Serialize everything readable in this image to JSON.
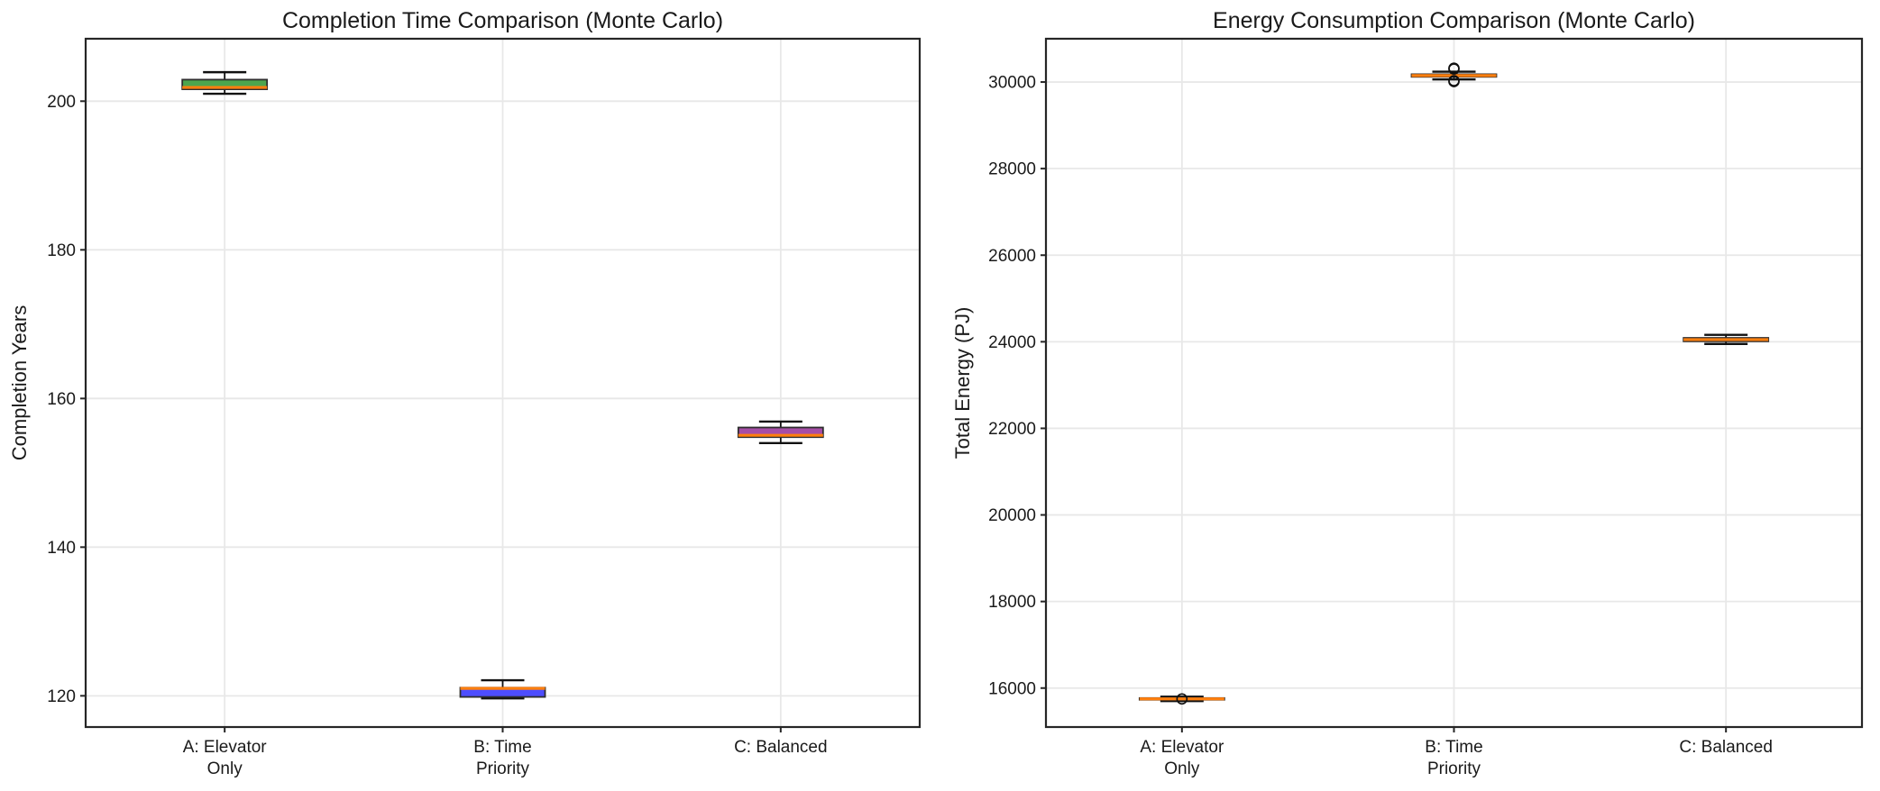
{
  "chart_data": [
    {
      "type": "box",
      "title": "Completion Time Comparison (Monte Carlo)",
      "ylabel": "Completion Years",
      "xlabel": "",
      "categories": [
        "A: Elevator\nOnly",
        "B: Time\nPriority",
        "C: Balanced"
      ],
      "ylim": [
        115.8,
        208.4
      ],
      "yticks": [
        120,
        140,
        160,
        180,
        200
      ],
      "grid": true,
      "legend": "none",
      "median_color": "#ff7f0e",
      "boxes": [
        {
          "label": "A: Elevator Only",
          "whislo": 201.0,
          "q1": 201.6,
          "med": 201.85,
          "q3": 202.9,
          "whishi": 203.9,
          "fliers": [],
          "fill": "#4da64d"
        },
        {
          "label": "B: Time Priority",
          "whislo": 119.65,
          "q1": 119.85,
          "med": 121.0,
          "q3": 121.1,
          "whishi": 122.1,
          "fliers": [],
          "fill": "#4d4dff"
        },
        {
          "label": "C: Balanced",
          "whislo": 154.0,
          "q1": 154.8,
          "med": 155.05,
          "q3": 156.1,
          "whishi": 156.9,
          "fliers": [],
          "fill": "#a64da6"
        }
      ]
    },
    {
      "type": "box",
      "title": "Energy Consumption Comparison (Monte Carlo)",
      "ylabel": "Total Energy (PJ)",
      "xlabel": "",
      "categories": [
        "A: Elevator\nOnly",
        "B: Time\nPriority",
        "C: Balanced"
      ],
      "ylim": [
        15100,
        31000
      ],
      "yticks": [
        16000,
        18000,
        20000,
        22000,
        24000,
        26000,
        28000,
        30000
      ],
      "grid": true,
      "legend": "none",
      "median_color": "#ff7f0e",
      "boxes": [
        {
          "label": "A: Elevator Only",
          "whislo": 15700,
          "q1": 15730,
          "med": 15750,
          "q3": 15770,
          "whishi": 15800,
          "fliers": [
            15750
          ],
          "fill": "none"
        },
        {
          "label": "B: Time Priority",
          "whislo": 30060,
          "q1": 30120,
          "med": 30150,
          "q3": 30180,
          "whishi": 30240,
          "fliers": [
            30320,
            30300,
            30030,
            30010
          ],
          "fill": "none"
        },
        {
          "label": "C: Balanced",
          "whislo": 23950,
          "q1": 24010,
          "med": 24050,
          "q3": 24090,
          "whishi": 24160,
          "fliers": [],
          "fill": "none"
        }
      ]
    }
  ],
  "style": {
    "spine_color": "#262626",
    "grid_color": "#e8e8e8",
    "whisker_color": "#111111",
    "box_edge_color": "#2e2e2e",
    "outlier_color": "#111111",
    "text_color": "#1a1a1a",
    "background": "#ffffff"
  }
}
